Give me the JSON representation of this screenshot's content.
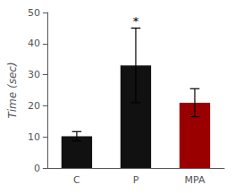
{
  "chart_data": {
    "type": "bar",
    "categories": [
      "C",
      "P",
      "MPA"
    ],
    "values": [
      10.2,
      33.0,
      21.0
    ],
    "errors": [
      1.5,
      12.0,
      4.5
    ],
    "colors": [
      "#111111",
      "#111111",
      "#9B0000"
    ],
    "ylabel": "Time (sec)",
    "ylim": [
      0,
      50
    ],
    "yticks": [
      0,
      10,
      20,
      30,
      40,
      50
    ],
    "grid": false,
    "annotations": [
      {
        "text": "*",
        "category": "P"
      }
    ]
  }
}
